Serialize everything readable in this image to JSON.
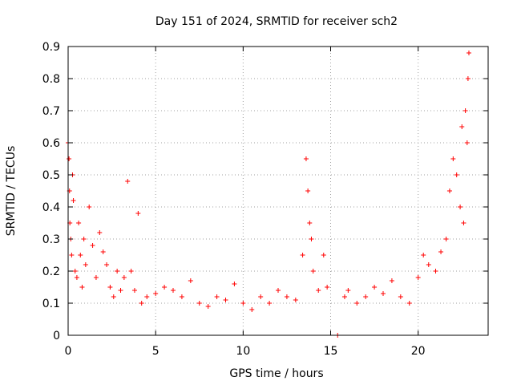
{
  "chart_data": {
    "type": "scatter",
    "title": "Day 151 of 2024, SRMTID for receiver sch2",
    "xlabel": "GPS time / hours",
    "ylabel": "SRMTID / TECUs",
    "xlim": [
      0,
      24
    ],
    "ylim": [
      0,
      0.9
    ],
    "xticks": [
      0,
      5,
      10,
      15,
      20
    ],
    "xtick_labels": [
      "0",
      "5",
      "10",
      "15",
      "20"
    ],
    "yticks": [
      0,
      0.1,
      0.2,
      0.3,
      0.4,
      0.5,
      0.6,
      0.7,
      0.8,
      0.9
    ],
    "ytick_labels": [
      "0",
      "0.1",
      "0.2",
      "0.3",
      "0.4",
      "0.5",
      "0.6",
      "0.7",
      "0.8",
      "0.9"
    ],
    "grid": true,
    "marker": "+",
    "color": "#ff0000",
    "series": [
      {
        "name": "sch2",
        "x": [
          0.0,
          0.05,
          0.08,
          0.1,
          0.15,
          0.2,
          0.25,
          0.3,
          0.4,
          0.5,
          0.6,
          0.7,
          0.8,
          0.9,
          1.0,
          1.2,
          1.4,
          1.6,
          1.8,
          2.0,
          2.2,
          2.4,
          2.6,
          2.8,
          3.0,
          3.2,
          3.4,
          3.6,
          3.8,
          4.0,
          4.2,
          4.5,
          5.0,
          5.5,
          6.0,
          6.5,
          7.0,
          7.5,
          8.0,
          8.5,
          9.0,
          9.5,
          10.0,
          10.5,
          11.0,
          11.5,
          12.0,
          12.5,
          13.0,
          13.4,
          13.6,
          13.7,
          13.8,
          13.9,
          14.0,
          14.3,
          14.6,
          14.8,
          15.4,
          15.8,
          16.0,
          16.5,
          17.0,
          17.5,
          18.0,
          18.5,
          19.0,
          19.5,
          20.0,
          20.3,
          20.6,
          21.0,
          21.3,
          21.6,
          21.8,
          22.0,
          22.2,
          22.4,
          22.5,
          22.6,
          22.7,
          22.8,
          22.85,
          22.9
        ],
        "values": [
          0.6,
          0.55,
          0.45,
          0.35,
          0.3,
          0.25,
          0.5,
          0.42,
          0.2,
          0.18,
          0.35,
          0.25,
          0.15,
          0.3,
          0.22,
          0.4,
          0.28,
          0.18,
          0.32,
          0.26,
          0.22,
          0.15,
          0.12,
          0.2,
          0.14,
          0.18,
          0.48,
          0.2,
          0.14,
          0.38,
          0.1,
          0.12,
          0.13,
          0.15,
          0.14,
          0.12,
          0.17,
          0.1,
          0.09,
          0.12,
          0.11,
          0.16,
          0.1,
          0.08,
          0.12,
          0.1,
          0.14,
          0.12,
          0.11,
          0.25,
          0.55,
          0.45,
          0.35,
          0.3,
          0.2,
          0.14,
          0.25,
          0.15,
          0.0,
          0.12,
          0.14,
          0.1,
          0.12,
          0.15,
          0.13,
          0.17,
          0.12,
          0.1,
          0.18,
          0.25,
          0.22,
          0.2,
          0.26,
          0.3,
          0.45,
          0.55,
          0.5,
          0.4,
          0.65,
          0.35,
          0.7,
          0.6,
          0.8,
          0.88
        ]
      }
    ]
  }
}
